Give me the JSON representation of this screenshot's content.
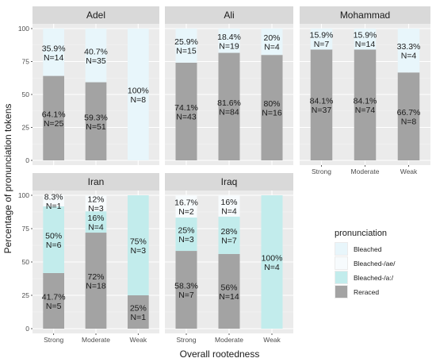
{
  "chart_data": {
    "type": "bar",
    "stacked": true,
    "xlabel": "Overall rootedness",
    "ylabel": "Percentage of pronunciation tokens",
    "ylim": [
      0,
      100
    ],
    "yticks": [
      0,
      25,
      50,
      75,
      100
    ],
    "categories": [
      "Strong",
      "Moderate",
      "Weak"
    ],
    "legend": {
      "title": "pronunciation",
      "placement": "right-bottom",
      "entries": [
        {
          "key": "bleached",
          "label": "Bleached",
          "color": "#e8f6fb"
        },
        {
          "key": "bleached_ae",
          "label": "Bleached-/ae/",
          "color": "#f7fbfd"
        },
        {
          "key": "bleached_a",
          "label": "Bleached-/a:/",
          "color": "#c2ecec"
        },
        {
          "key": "reraced",
          "label": "Reraced",
          "color": "#a3a3a3"
        }
      ]
    },
    "grid": true,
    "panels": [
      {
        "name": "Adel",
        "show_x_ticks": false,
        "bars": [
          {
            "category": "Strong",
            "segments": [
              {
                "type": "reraced",
                "value": 64.1,
                "pct": "64.1%",
                "n": "N=25"
              },
              {
                "type": "bleached",
                "value": 35.9,
                "pct": "35.9%",
                "n": "N=14"
              }
            ]
          },
          {
            "category": "Moderate",
            "segments": [
              {
                "type": "reraced",
                "value": 59.3,
                "pct": "59.3%",
                "n": "N=51"
              },
              {
                "type": "bleached",
                "value": 40.7,
                "pct": "40.7%",
                "n": "N=35"
              }
            ]
          },
          {
            "category": "Weak",
            "segments": [
              {
                "type": "bleached",
                "value": 100,
                "pct": "100%",
                "n": "N=8"
              }
            ]
          }
        ]
      },
      {
        "name": "Ali",
        "show_x_ticks": false,
        "bars": [
          {
            "category": "Strong",
            "segments": [
              {
                "type": "reraced",
                "value": 74.1,
                "pct": "74.1%",
                "n": "N=43"
              },
              {
                "type": "bleached",
                "value": 25.9,
                "pct": "25.9%",
                "n": "N=15"
              }
            ]
          },
          {
            "category": "Moderate",
            "segments": [
              {
                "type": "reraced",
                "value": 81.6,
                "pct": "81.6%",
                "n": "N=84"
              },
              {
                "type": "bleached",
                "value": 18.4,
                "pct": "18.4%",
                "n": "N=19"
              }
            ]
          },
          {
            "category": "Weak",
            "segments": [
              {
                "type": "reraced",
                "value": 80,
                "pct": "80%",
                "n": "N=16"
              },
              {
                "type": "bleached",
                "value": 20,
                "pct": "20%",
                "n": "N=4"
              }
            ]
          }
        ]
      },
      {
        "name": "Mohammad",
        "show_x_ticks": true,
        "bars": [
          {
            "category": "Strong",
            "segments": [
              {
                "type": "reraced",
                "value": 84.1,
                "pct": "84.1%",
                "n": "N=37"
              },
              {
                "type": "bleached",
                "value": 15.9,
                "pct": "15.9%",
                "n": "N=7"
              }
            ]
          },
          {
            "category": "Moderate",
            "segments": [
              {
                "type": "reraced",
                "value": 84.1,
                "pct": "84.1%",
                "n": "N=74"
              },
              {
                "type": "bleached",
                "value": 15.9,
                "pct": "15.9%",
                "n": "N=14"
              }
            ]
          },
          {
            "category": "Weak",
            "segments": [
              {
                "type": "reraced",
                "value": 66.7,
                "pct": "66.7%",
                "n": "N=8"
              },
              {
                "type": "bleached",
                "value": 33.3,
                "pct": "33.3%",
                "n": "N=4"
              }
            ]
          }
        ]
      },
      {
        "name": "Iran",
        "show_x_ticks": true,
        "bars": [
          {
            "category": "Strong",
            "segments": [
              {
                "type": "reraced",
                "value": 41.7,
                "pct": "41.7%",
                "n": "N=5"
              },
              {
                "type": "bleached_a",
                "value": 50,
                "pct": "50%",
                "n": "N=6"
              },
              {
                "type": "bleached_ae",
                "value": 8.3,
                "pct": "8.3%",
                "n": "N=1"
              }
            ]
          },
          {
            "category": "Moderate",
            "segments": [
              {
                "type": "reraced",
                "value": 72,
                "pct": "72%",
                "n": "N=18"
              },
              {
                "type": "bleached_a",
                "value": 16,
                "pct": "16%",
                "n": "N=4"
              },
              {
                "type": "bleached_ae",
                "value": 12,
                "pct": "12%",
                "n": "N=3"
              }
            ]
          },
          {
            "category": "Weak",
            "segments": [
              {
                "type": "reraced",
                "value": 25,
                "pct": "25%",
                "n": "N=1"
              },
              {
                "type": "bleached_a",
                "value": 75,
                "pct": "75%",
                "n": "N=3"
              }
            ]
          }
        ]
      },
      {
        "name": "Iraq",
        "show_x_ticks": true,
        "bars": [
          {
            "category": "Strong",
            "segments": [
              {
                "type": "reraced",
                "value": 58.3,
                "pct": "58.3%",
                "n": "N=7"
              },
              {
                "type": "bleached_a",
                "value": 25,
                "pct": "25%",
                "n": "N=3"
              },
              {
                "type": "bleached_ae",
                "value": 16.7,
                "pct": "16.7%",
                "n": "N=2"
              }
            ]
          },
          {
            "category": "Moderate",
            "segments": [
              {
                "type": "reraced",
                "value": 56,
                "pct": "56%",
                "n": "N=14"
              },
              {
                "type": "bleached_a",
                "value": 28,
                "pct": "28%",
                "n": "N=7"
              },
              {
                "type": "bleached_ae",
                "value": 16,
                "pct": "16%",
                "n": "N=4"
              }
            ]
          },
          {
            "category": "Weak",
            "segments": [
              {
                "type": "bleached_a",
                "value": 100,
                "pct": "100%",
                "n": "N=4"
              }
            ]
          }
        ]
      }
    ]
  }
}
